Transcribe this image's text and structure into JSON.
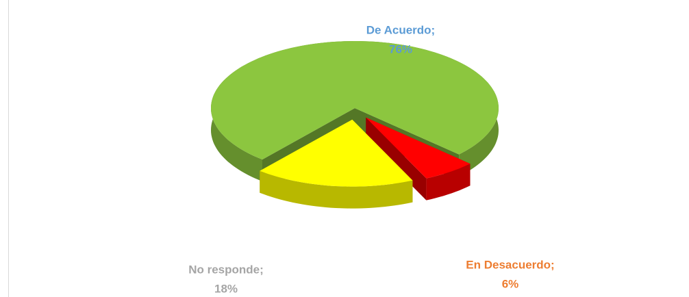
{
  "chart_data": {
    "type": "pie3d",
    "categories": [
      "De Acuerdo;",
      "En Desacuerdo;",
      "No responde;"
    ],
    "values": [
      76,
      6,
      18
    ],
    "value_labels": [
      "76%",
      "6%",
      "18%"
    ],
    "colors": [
      "#8cc63f",
      "#ff0000",
      "#ffff00"
    ],
    "label_colors": [
      "#5b9bd5",
      "#ed7d31",
      "#a5a5a5"
    ]
  }
}
